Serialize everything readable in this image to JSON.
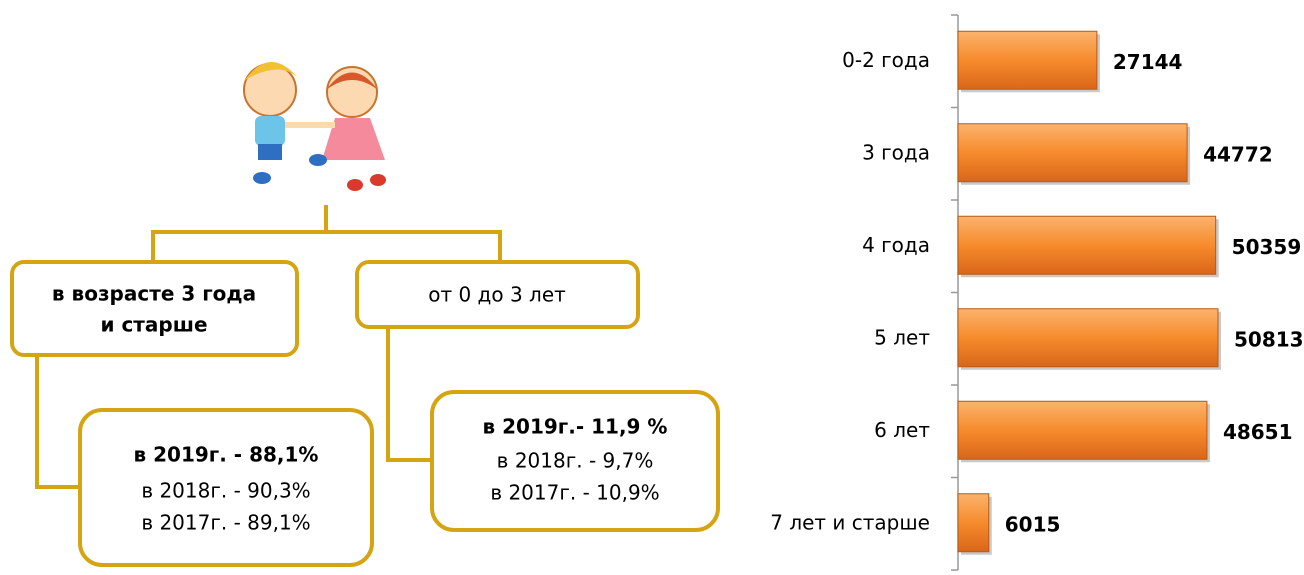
{
  "diagram": {
    "nodes": [
      {
        "lines": [
          "в возрасте 3 года",
          "и старше"
        ]
      },
      {
        "lines": [
          "от 0 до 3 лет"
        ]
      },
      {
        "lines": [
          "в 2019г. - 88,1%",
          "в 2018г. - 90,3%",
          "в 2017г. - 89,1%"
        ]
      },
      {
        "lines": [
          "в 2019г.- 11,9 %",
          "в 2018г. - 9,7%",
          "в 2017г. - 10,9%"
        ]
      }
    ]
  },
  "chart_data": {
    "type": "bar",
    "orientation": "horizontal",
    "color": "#f68b2c",
    "categories": [
      "0-2 года",
      "3 года",
      "4 года",
      "5 лет",
      "6 лет",
      "7 лет и старше"
    ],
    "values": [
      27144,
      44772,
      50359,
      50813,
      48651,
      6015
    ]
  }
}
